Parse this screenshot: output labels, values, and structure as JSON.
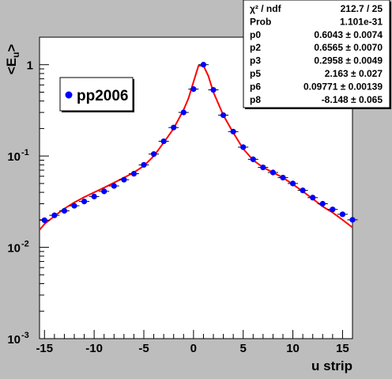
{
  "chart_data": {
    "type": "scatter",
    "title": "",
    "xlabel": "u strip",
    "ylabel": "<E_u>",
    "xlim": [
      -15.5,
      16
    ],
    "ylim": [
      0.001,
      2
    ],
    "yscale": "log",
    "grid": false,
    "legend": {
      "placement": "top-left",
      "entries": [
        "pp2006"
      ]
    },
    "x_ticks": [
      "-15",
      "-10",
      "-5",
      "0",
      "5",
      "10",
      "15"
    ],
    "x_tick_values": [
      -15,
      -10,
      -5,
      0,
      5,
      10,
      15
    ],
    "y_ticks": [
      {
        "value": 1,
        "label": "1"
      },
      {
        "value": 0.1,
        "label": "10",
        "exp": "-1"
      },
      {
        "value": 0.01,
        "label": "10",
        "exp": "-2"
      },
      {
        "value": 0.001,
        "label": "10",
        "exp": "-3"
      }
    ],
    "series": [
      {
        "name": "pp2006",
        "color": "#0000ff",
        "x": [
          -15,
          -14,
          -13,
          -12,
          -11,
          -10,
          -9,
          -8,
          -7,
          -6,
          -5,
          -4,
          -3,
          -2,
          -1,
          0,
          1,
          2,
          3,
          4,
          5,
          6,
          7,
          8,
          9,
          10,
          11,
          12,
          13,
          14,
          15,
          16
        ],
        "y": [
          0.0198,
          0.0224,
          0.0251,
          0.0285,
          0.0318,
          0.036,
          0.041,
          0.047,
          0.055,
          0.064,
          0.08,
          0.105,
          0.145,
          0.205,
          0.3,
          0.54,
          1.0,
          0.53,
          0.28,
          0.185,
          0.125,
          0.092,
          0.075,
          0.066,
          0.058,
          0.05,
          0.042,
          0.035,
          0.03,
          0.026,
          0.023,
          0.02
        ]
      },
      {
        "name": "fit",
        "color": "#ff0000",
        "x": [
          -15.5,
          -15,
          -14,
          -13,
          -12,
          -11,
          -10,
          -9,
          -8,
          -7,
          -6,
          -5,
          -4,
          -3,
          -2,
          -1,
          -0.5,
          0,
          0.5,
          1,
          1.5,
          2,
          3,
          4,
          5,
          6,
          7,
          8,
          9,
          10,
          11,
          12,
          13,
          14,
          15,
          16
        ],
        "y": [
          0.0155,
          0.018,
          0.022,
          0.0265,
          0.031,
          0.0355,
          0.04,
          0.045,
          0.051,
          0.058,
          0.066,
          0.078,
          0.1,
          0.14,
          0.2,
          0.32,
          0.43,
          0.65,
          0.97,
          0.98,
          0.75,
          0.5,
          0.28,
          0.18,
          0.12,
          0.09,
          0.075,
          0.066,
          0.058,
          0.049,
          0.041,
          0.034,
          0.028,
          0.024,
          0.02,
          0.0165
        ]
      }
    ],
    "stats": [
      {
        "label": "χ² / ndf",
        "value": "212.7 / 25"
      },
      {
        "label": "Prob",
        "value": "1.101e-31"
      },
      {
        "label": "p0",
        "value": "0.6043 ± 0.0074"
      },
      {
        "label": "p2",
        "value": "0.6565 ± 0.0070"
      },
      {
        "label": "p3",
        "value": "0.2958 ± 0.0049"
      },
      {
        "label": "p5",
        "value": "2.163 ± 0.027"
      },
      {
        "label": "p6",
        "value": "0.09771 ± 0.00139"
      },
      {
        "label": "p8",
        "value": "-8.148 ± 0.065"
      }
    ],
    "colors": {
      "canvas": "#bdbdbd",
      "frame": "#ffffff",
      "points": "#0000ff",
      "fit": "#ff0000"
    }
  }
}
